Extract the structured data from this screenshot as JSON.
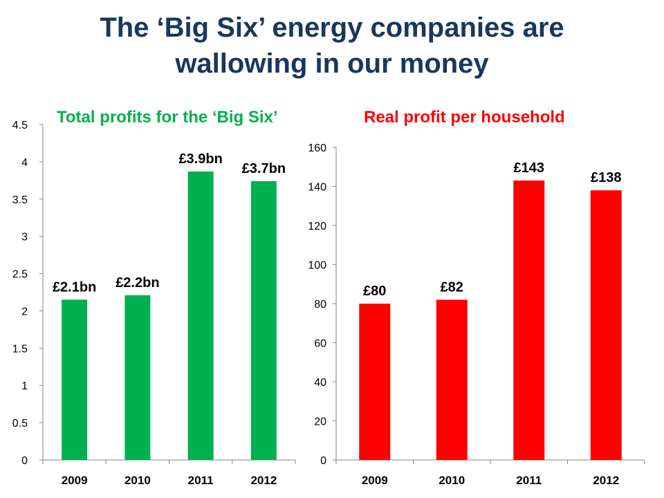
{
  "title_lines": [
    "The ‘Big Six’ energy companies are",
    "wallowing in our money"
  ],
  "chart_data": [
    {
      "type": "bar",
      "title": "Total profits for the ‘Big Six’",
      "categories": [
        "2009",
        "2010",
        "2011",
        "2012"
      ],
      "values": [
        2.15,
        2.21,
        3.87,
        3.74
      ],
      "data_labels": [
        "£2.1bn",
        "£2.2bn",
        "£3.9bn",
        "£3.7bn"
      ],
      "ylim": [
        0,
        4.5
      ],
      "yticks": [
        "0",
        "0.5",
        "1",
        "1.5",
        "2",
        "2.5",
        "3",
        "3.5",
        "4",
        "4.5"
      ],
      "xlabel": "",
      "ylabel": "",
      "grid": false,
      "color": "#00b050"
    },
    {
      "type": "bar",
      "title": "Real profit per household",
      "categories": [
        "2009",
        "2010",
        "2011",
        "2012"
      ],
      "values": [
        80,
        82,
        143,
        138
      ],
      "data_labels": [
        "£80",
        "£82",
        "£143",
        "£138"
      ],
      "ylim": [
        0,
        160
      ],
      "yticks": [
        "0",
        "20",
        "40",
        "60",
        "80",
        "100",
        "120",
        "140",
        "160"
      ],
      "xlabel": "",
      "ylabel": "",
      "grid": false,
      "color": "#ff0000"
    }
  ]
}
